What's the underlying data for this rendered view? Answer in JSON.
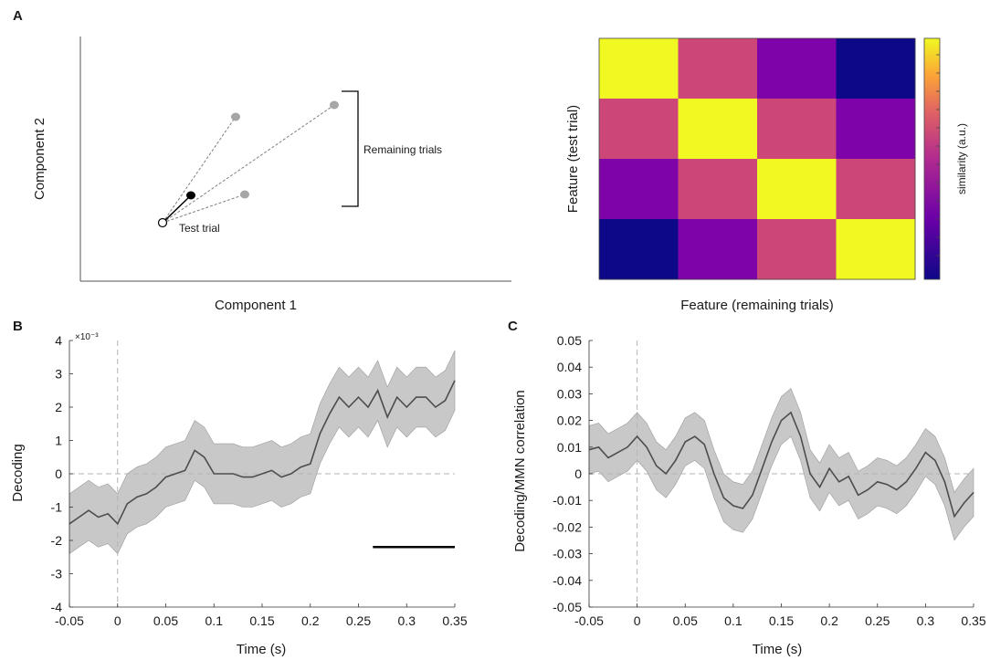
{
  "panels": {
    "a": "A",
    "b": "B",
    "c": "C"
  },
  "chart_data": [
    {
      "type": "scatter",
      "panel": "A",
      "title": "",
      "xlabel": "Component 1",
      "ylabel": "Component 2",
      "points": [
        {
          "name": "gray-point-1",
          "x": 0.48,
          "y": 0.72
        },
        {
          "name": "gray-point-2",
          "x": 0.95,
          "y": 0.8
        },
        {
          "name": "gray-point-3",
          "x": 0.52,
          "y": 0.38
        },
        {
          "name": "test-trial-point",
          "x": 0.35,
          "y": 0.25
        },
        {
          "name": "mean-point",
          "x": 0.42,
          "y": 0.35
        }
      ],
      "annotations": {
        "bracket_label": "Remaining trials",
        "test_label": "Test trial"
      },
      "colors": {
        "gray_point": "#a6a6a6",
        "line": "#7f7f7f",
        "mean_point": "#000000",
        "test_point": "#ffffff"
      }
    },
    {
      "type": "heatmap",
      "panel": "A",
      "xlabel": "Feature (remaining trials)",
      "ylabel": "Feature (test trial)",
      "matrix": [
        [
          1.0,
          0.55,
          0.28,
          0.0
        ],
        [
          0.55,
          1.0,
          0.55,
          0.28
        ],
        [
          0.28,
          0.55,
          1.0,
          0.55
        ],
        [
          0.0,
          0.28,
          0.55,
          1.0
        ]
      ],
      "colorbar_label": "similarity (a.u.)",
      "colors": {
        "high": "#f0f921",
        "mid": "#cc4778",
        "lowmid": "#7e03a8",
        "low": "#0d0887"
      }
    },
    {
      "type": "line",
      "panel": "B",
      "xlabel": "Time (s)",
      "ylabel": "Decoding",
      "exponent": "×10⁻³",
      "xlim": [
        -0.05,
        0.35
      ],
      "ylim": [
        -4,
        4
      ],
      "xticks": [
        -0.05,
        0,
        0.05,
        0.1,
        0.15,
        0.2,
        0.25,
        0.3,
        0.35
      ],
      "xtick_labels": [
        "-0.05",
        "0",
        "0.05",
        "0.1",
        "0.15",
        "0.2",
        "0.25",
        "0.3",
        "0.35"
      ],
      "yticks": [
        -4,
        -3,
        -2,
        -1,
        0,
        1,
        2,
        3,
        4
      ],
      "ytick_labels": [
        "-4",
        "-3",
        "-2",
        "-1",
        "0",
        "1",
        "2",
        "3",
        "4"
      ],
      "series": [
        {
          "name": "decoding-mean",
          "x": [
            -0.05,
            -0.04,
            -0.03,
            -0.02,
            -0.01,
            0,
            0.01,
            0.02,
            0.03,
            0.04,
            0.05,
            0.06,
            0.07,
            0.08,
            0.09,
            0.1,
            0.11,
            0.12,
            0.13,
            0.14,
            0.15,
            0.16,
            0.17,
            0.18,
            0.19,
            0.2,
            0.21,
            0.22,
            0.23,
            0.24,
            0.25,
            0.26,
            0.27,
            0.28,
            0.29,
            0.3,
            0.31,
            0.32,
            0.33,
            0.34,
            0.35
          ],
          "values": [
            -1.5,
            -1.3,
            -1.1,
            -1.3,
            -1.2,
            -1.5,
            -0.9,
            -0.7,
            -0.6,
            -0.4,
            -0.1,
            0.0,
            0.1,
            0.7,
            0.5,
            0.0,
            0.0,
            0.0,
            -0.1,
            -0.1,
            0.0,
            0.1,
            -0.1,
            0.0,
            0.2,
            0.3,
            1.2,
            1.8,
            2.3,
            2.0,
            2.3,
            2.0,
            2.5,
            1.7,
            2.3,
            2.0,
            2.3,
            2.3,
            2.0,
            2.2,
            2.8
          ],
          "band": 0.9
        }
      ],
      "significance_bar": [
        0.265,
        0.35
      ],
      "colors": {
        "line": "#4d4d4d",
        "band": "#c8c8c8",
        "sig": "#000000",
        "ref": "#b3b3b3"
      }
    },
    {
      "type": "line",
      "panel": "C",
      "xlabel": "Time (s)",
      "ylabel": "Decoding/MMN correlation",
      "xlim": [
        -0.05,
        0.35
      ],
      "ylim": [
        -0.05,
        0.05
      ],
      "xticks": [
        -0.05,
        0,
        0.05,
        0.1,
        0.15,
        0.2,
        0.25,
        0.3,
        0.35
      ],
      "xtick_labels": [
        "-0.05",
        "0",
        "0.05",
        "0.1",
        "0.15",
        "0.2",
        "0.25",
        "0.3",
        "0.35"
      ],
      "yticks": [
        0.05,
        0.04,
        0.03,
        0.02,
        0.01,
        0,
        -0.01,
        -0.02,
        -0.03,
        -0.04,
        -0.05
      ],
      "ytick_labels": [
        "0.05",
        "0.04",
        "0.03",
        "0.02",
        "0.01",
        "0",
        "-0.01",
        "-0.02",
        "-0.03",
        "-0.04",
        "-0.05"
      ],
      "series": [
        {
          "name": "correlation-mean",
          "x": [
            -0.05,
            -0.04,
            -0.03,
            -0.02,
            -0.01,
            0,
            0.01,
            0.02,
            0.03,
            0.04,
            0.05,
            0.06,
            0.07,
            0.08,
            0.09,
            0.1,
            0.11,
            0.12,
            0.13,
            0.14,
            0.15,
            0.16,
            0.17,
            0.18,
            0.19,
            0.2,
            0.21,
            0.22,
            0.23,
            0.24,
            0.25,
            0.26,
            0.27,
            0.28,
            0.29,
            0.3,
            0.31,
            0.32,
            0.33,
            0.34,
            0.35
          ],
          "values": [
            0.009,
            0.01,
            0.006,
            0.008,
            0.01,
            0.014,
            0.01,
            0.003,
            0.0,
            0.005,
            0.012,
            0.014,
            0.011,
            0.0,
            -0.009,
            -0.012,
            -0.013,
            -0.008,
            0.002,
            0.012,
            0.02,
            0.023,
            0.014,
            0.0,
            -0.005,
            0.002,
            -0.003,
            -0.001,
            -0.008,
            -0.006,
            -0.003,
            -0.004,
            -0.006,
            -0.003,
            0.002,
            0.008,
            0.005,
            -0.003,
            -0.016,
            -0.011,
            -0.007
          ],
          "band": 0.009
        }
      ],
      "colors": {
        "line": "#4d4d4d",
        "band": "#c8c8c8",
        "ref": "#b3b3b3"
      }
    }
  ]
}
